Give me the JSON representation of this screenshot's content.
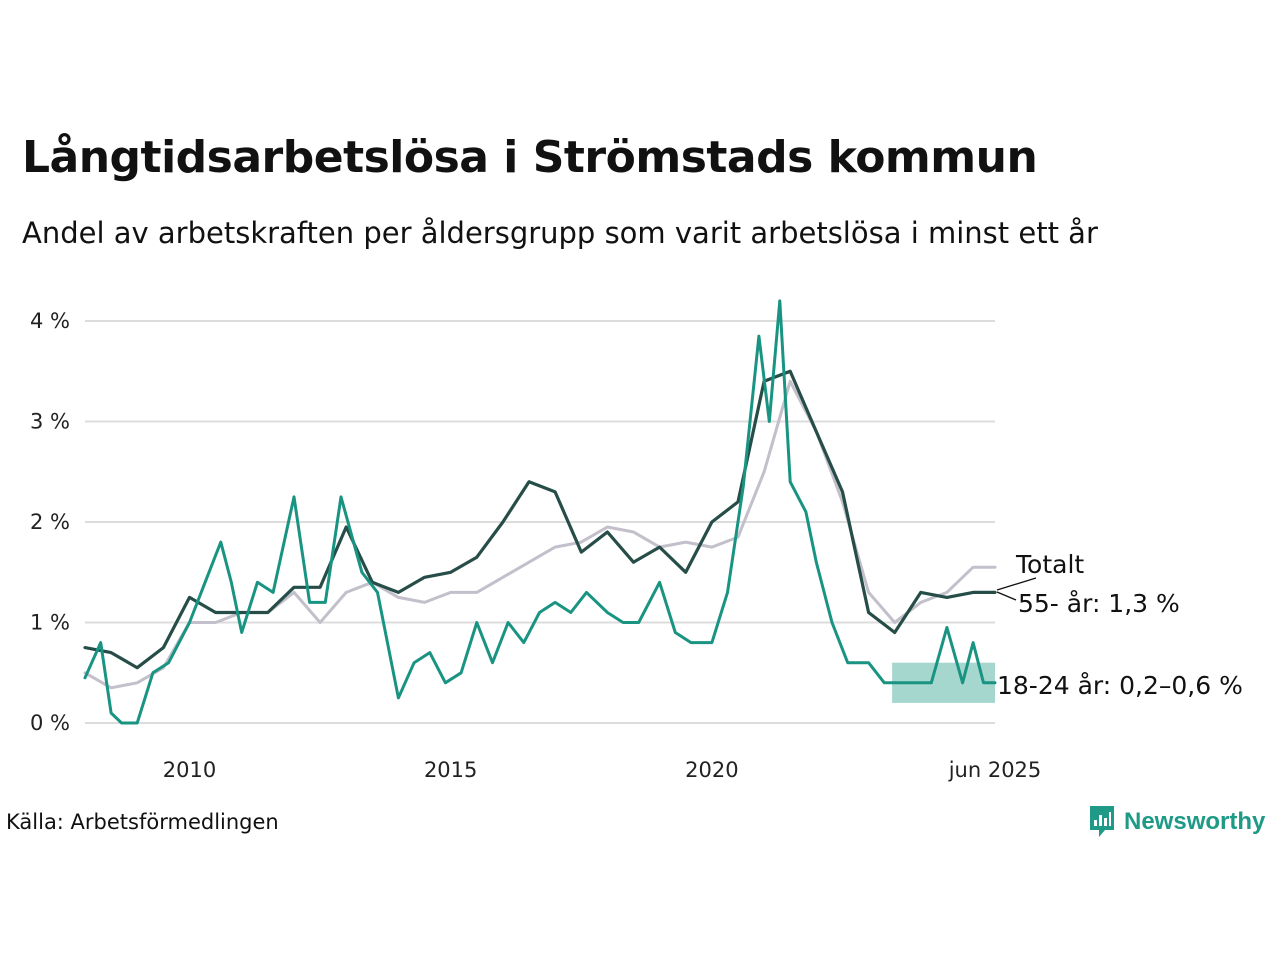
{
  "title": "Långtidsarbetslösa i Strömstads kommun",
  "subtitle": "Andel av arbetskraften per åldersgrupp som varit arbetslösa i minst ett år",
  "source": "Källa: Arbetsförmedlingen",
  "brand": "Newsworthy",
  "chart_data": {
    "type": "line",
    "y_ticks": [
      "0 %",
      "1 %",
      "2 %",
      "3 %",
      "4 %"
    ],
    "x_ticks": [
      "2010",
      "2015",
      "2020",
      "jun 2025"
    ],
    "ylim": [
      0,
      4.2
    ],
    "x_range": [
      2008.0,
      2025.42
    ],
    "grid": true,
    "colors": {
      "totalt": "#c3bfcb",
      "age55": "#264d47",
      "age18_24": "#1a9482",
      "band": "#9bd3c9"
    },
    "series": [
      {
        "key": "totalt",
        "name": "Totalt",
        "x": [
          2008.0,
          2008.5,
          2009.0,
          2009.5,
          2010.0,
          2010.5,
          2011.0,
          2011.5,
          2012.0,
          2012.5,
          2013.0,
          2013.5,
          2014.0,
          2014.5,
          2015.0,
          2015.5,
          2016.0,
          2016.5,
          2017.0,
          2017.5,
          2018.0,
          2018.5,
          2019.0,
          2019.5,
          2020.0,
          2020.5,
          2021.0,
          2021.5,
          2022.0,
          2022.5,
          2023.0,
          2023.5,
          2024.0,
          2024.5,
          2025.0,
          2025.42
        ],
        "values": [
          0.5,
          0.35,
          0.4,
          0.55,
          1.0,
          1.0,
          1.1,
          1.1,
          1.3,
          1.0,
          1.3,
          1.4,
          1.25,
          1.2,
          1.3,
          1.3,
          1.45,
          1.6,
          1.75,
          1.8,
          1.95,
          1.9,
          1.75,
          1.8,
          1.75,
          1.85,
          2.5,
          3.4,
          2.9,
          2.2,
          1.3,
          1.0,
          1.2,
          1.3,
          1.55,
          1.55
        ]
      },
      {
        "key": "age55",
        "name": "55- år: 1,3 %",
        "x": [
          2008.0,
          2008.5,
          2009.0,
          2009.5,
          2010.0,
          2010.5,
          2011.0,
          2011.5,
          2012.0,
          2012.5,
          2013.0,
          2013.5,
          2014.0,
          2014.5,
          2015.0,
          2015.5,
          2016.0,
          2016.5,
          2017.0,
          2017.5,
          2018.0,
          2018.5,
          2019.0,
          2019.5,
          2020.0,
          2020.5,
          2021.0,
          2021.5,
          2022.0,
          2022.5,
          2023.0,
          2023.5,
          2024.0,
          2024.5,
          2025.0,
          2025.42
        ],
        "values": [
          0.75,
          0.7,
          0.55,
          0.75,
          1.25,
          1.1,
          1.1,
          1.1,
          1.35,
          1.35,
          1.95,
          1.4,
          1.3,
          1.45,
          1.5,
          1.65,
          2.0,
          2.4,
          2.3,
          1.7,
          1.9,
          1.6,
          1.75,
          1.5,
          2.0,
          2.2,
          3.4,
          3.5,
          2.9,
          2.3,
          1.1,
          0.9,
          1.3,
          1.25,
          1.3,
          1.3
        ]
      },
      {
        "key": "age18_24",
        "name": "18-24 år: 0,2–0,6 %",
        "x": [
          2008.0,
          2008.3,
          2008.5,
          2008.7,
          2009.0,
          2009.3,
          2009.6,
          2010.0,
          2010.3,
          2010.6,
          2010.8,
          2011.0,
          2011.3,
          2011.6,
          2012.0,
          2012.3,
          2012.6,
          2012.9,
          2013.3,
          2013.6,
          2014.0,
          2014.3,
          2014.6,
          2014.9,
          2015.2,
          2015.5,
          2015.8,
          2016.1,
          2016.4,
          2016.7,
          2017.0,
          2017.3,
          2017.6,
          2018.0,
          2018.3,
          2018.6,
          2019.0,
          2019.3,
          2019.6,
          2020.0,
          2020.3,
          2020.6,
          2020.9,
          2021.1,
          2021.3,
          2021.5,
          2021.8,
          2022.0,
          2022.3,
          2022.6,
          2023.0,
          2023.3,
          2023.6,
          2023.9,
          2024.2,
          2024.5,
          2024.8,
          2025.0,
          2025.2,
          2025.42
        ],
        "values": [
          0.45,
          0.8,
          0.1,
          0.0,
          0.0,
          0.5,
          0.6,
          1.0,
          1.4,
          1.8,
          1.4,
          0.9,
          1.4,
          1.3,
          2.25,
          1.2,
          1.2,
          2.25,
          1.5,
          1.3,
          0.25,
          0.6,
          0.7,
          0.4,
          0.5,
          1.0,
          0.6,
          1.0,
          0.8,
          1.1,
          1.2,
          1.1,
          1.3,
          1.1,
          1.0,
          1.0,
          1.4,
          0.9,
          0.8,
          0.8,
          1.3,
          2.35,
          3.85,
          3.0,
          4.2,
          2.4,
          2.1,
          1.6,
          1.0,
          0.6,
          0.6,
          0.4,
          0.4,
          0.4,
          0.4,
          0.95,
          0.4,
          0.8,
          0.4,
          0.4
        ]
      }
    ],
    "band": {
      "name": "18-24 år: 0,2–0,6 %",
      "x": [
        2023.45,
        2025.42
      ],
      "low": 0.2,
      "high": 0.6
    },
    "labels": [
      "Totalt",
      "55- år: 1,3 %",
      "18-24 år: 0,2–0,6 %"
    ]
  }
}
